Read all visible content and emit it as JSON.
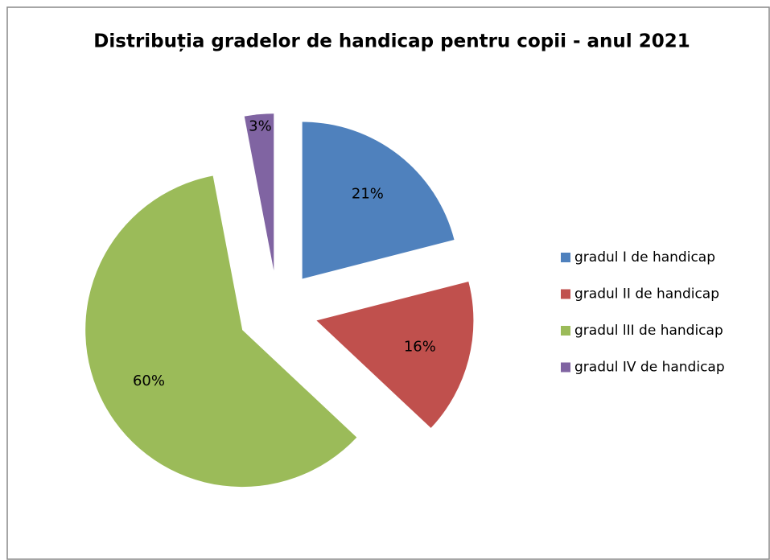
{
  "chart_data": {
    "type": "pie",
    "title": "Distribuția gradelor de handicap  pentru copii  - anul 2021",
    "categories": [
      "gradul I de handicap",
      "gradul II de handicap",
      "gradul lII de handicap",
      "gradul IV de handicap"
    ],
    "values": [
      21,
      16,
      60,
      3
    ],
    "value_labels": [
      "21%",
      "16%",
      "60%",
      "3%"
    ],
    "colors": [
      "#4f81bd",
      "#c0504d",
      "#9bbb59",
      "#8064a2"
    ],
    "legend": "right"
  }
}
